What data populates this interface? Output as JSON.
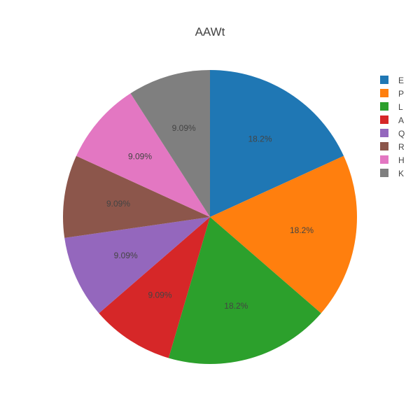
{
  "chart_data": {
    "type": "pie",
    "title": "AAWt",
    "legend_position": "top-right",
    "sort": "descending",
    "direction": "clockwise",
    "start": "12 o'clock",
    "slices": [
      {
        "label": "E",
        "value": 2,
        "percent_label": "18.2%",
        "color": "#1f77b4"
      },
      {
        "label": "P",
        "value": 2,
        "percent_label": "18.2%",
        "color": "#ff7f0e"
      },
      {
        "label": "L",
        "value": 2,
        "percent_label": "18.2%",
        "color": "#2ca02c"
      },
      {
        "label": "A",
        "value": 1,
        "percent_label": "9.09%",
        "color": "#d62728"
      },
      {
        "label": "Q",
        "value": 1,
        "percent_label": "9.09%",
        "color": "#9467bd"
      },
      {
        "label": "R",
        "value": 1,
        "percent_label": "9.09%",
        "color": "#8c564b"
      },
      {
        "label": "H",
        "value": 1,
        "percent_label": "9.09%",
        "color": "#e377c2"
      },
      {
        "label": "K",
        "value": 1,
        "percent_label": "9.09%",
        "color": "#7f7f7f"
      }
    ]
  }
}
